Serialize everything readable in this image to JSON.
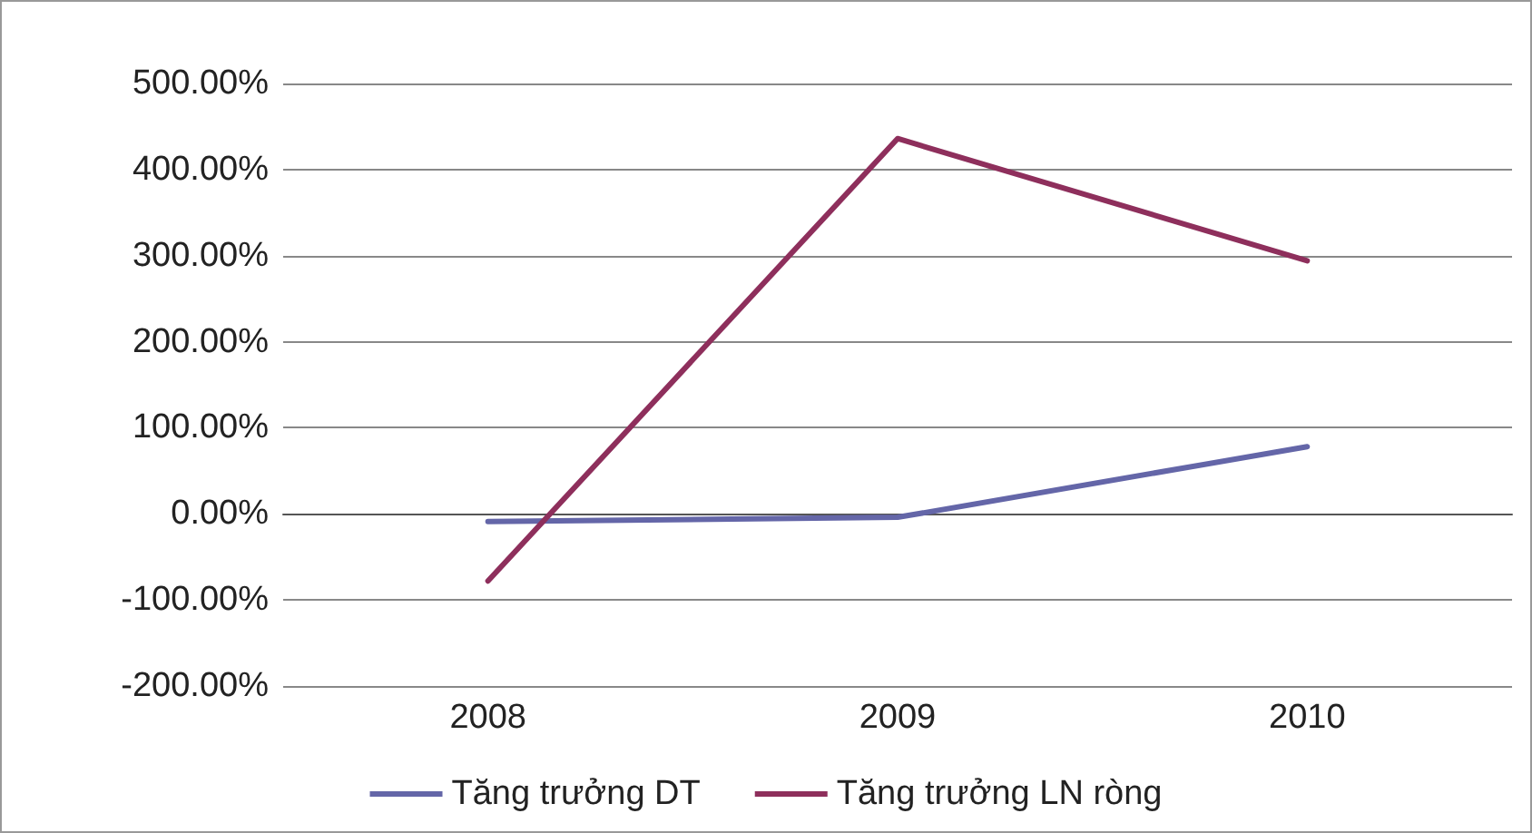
{
  "chart_data": {
    "type": "line",
    "categories": [
      "2008",
      "2009",
      "2010"
    ],
    "series": [
      {
        "name": "Tăng trưởng DT",
        "color": "#6466a8",
        "values": [
          -9,
          -4,
          78
        ]
      },
      {
        "name": "Tăng trưởng LN ròng",
        "color": "#8e2f5c",
        "values": [
          -78,
          436,
          294
        ]
      }
    ],
    "ylim": [
      -200,
      500
    ],
    "yticks": [
      {
        "value": -200,
        "label": "-200.00%"
      },
      {
        "value": -100,
        "label": "-100.00%"
      },
      {
        "value": 0,
        "label": "0.00%"
      },
      {
        "value": 100,
        "label": "100.00%"
      },
      {
        "value": 200,
        "label": "200.00%"
      },
      {
        "value": 300,
        "label": "300.00%"
      },
      {
        "value": 400,
        "label": "400.00%"
      },
      {
        "value": 500,
        "label": "500.00%"
      }
    ],
    "grid": "y",
    "legend": "bottom",
    "marker": "none",
    "line_style": "solid"
  }
}
